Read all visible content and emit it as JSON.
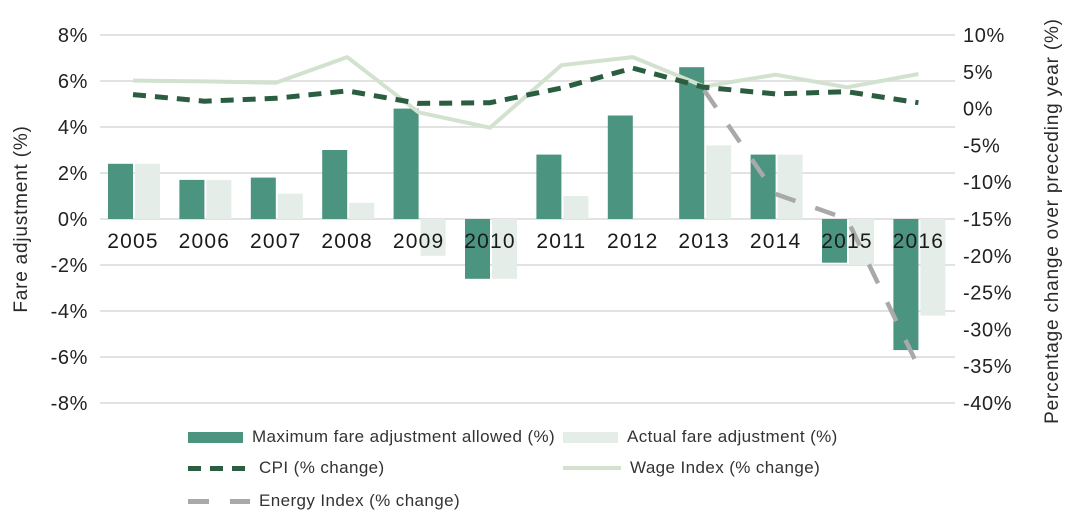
{
  "chart_data": {
    "type": "combo-bar-line",
    "title": "",
    "categories": [
      "2005",
      "2006",
      "2007",
      "2008",
      "2009",
      "2010",
      "2011",
      "2012",
      "2013",
      "2014",
      "2015",
      "2016"
    ],
    "left_axis": {
      "title": "Fare adjustment (%)",
      "ticks": [
        "8%",
        "6%",
        "4%",
        "2%",
        "0%",
        "-2%",
        "-4%",
        "-6%",
        "-8%"
      ],
      "range": [
        -8,
        8
      ],
      "step": 2
    },
    "right_axis": {
      "title": "Percentage change over preceding year (%)",
      "ticks": [
        "10%",
        "5%",
        "0%",
        "-5%",
        "-10%",
        "-15%",
        "-20%",
        "-25%",
        "-30%",
        "-35%",
        "-40%"
      ],
      "range": [
        -40,
        10
      ],
      "step": 5
    },
    "grid": "horizontal-only",
    "legend_position": "bottom",
    "colors": {
      "max_fare_bar": "#4b947f",
      "actual_fare_bar": "#e4ede8",
      "cpi_line": "#2b5e40",
      "wage_line": "#d2e2cf",
      "energy_line": "#a9a9a9",
      "gridline": "#e2e2e2"
    },
    "series": [
      {
        "name": "Maximum fare adjustment allowed (%)",
        "type": "bar",
        "axis": "left",
        "color": "#4b947f",
        "values": [
          2.4,
          1.7,
          1.8,
          3.0,
          4.8,
          -2.6,
          2.8,
          4.5,
          6.6,
          2.8,
          -1.9,
          -5.7
        ]
      },
      {
        "name": "Actual fare adjustment (%)",
        "type": "bar",
        "axis": "left",
        "color": "#e4ede8",
        "values": [
          2.4,
          1.7,
          1.1,
          0.7,
          -1.6,
          -2.6,
          1.0,
          0,
          3.2,
          2.8,
          -2.0,
          -4.2
        ]
      },
      {
        "name": "CPI (% change)",
        "type": "line",
        "axis": "right",
        "color": "#2b5e40",
        "dash": [
          13,
          9
        ],
        "width": 5,
        "values": [
          1.9,
          1.0,
          1.4,
          2.4,
          0.7,
          0.8,
          2.8,
          5.5,
          2.9,
          2.0,
          2.3,
          0.8
        ]
      },
      {
        "name": "Wage Index (% change)",
        "type": "line",
        "axis": "right",
        "color": "#d2e2cf",
        "dash": null,
        "width": 4,
        "values": [
          3.8,
          3.7,
          3.5,
          7.0,
          -0.5,
          -2.6,
          5.9,
          7.0,
          3.0,
          4.6,
          2.9,
          4.7
        ]
      },
      {
        "name": "Energy Index (% change)",
        "type": "line",
        "axis": "right",
        "color": "#a9a9a9",
        "dash": [
          21,
          21
        ],
        "width": 4.5,
        "values": [
          null,
          null,
          null,
          null,
          null,
          null,
          null,
          null,
          2.5,
          -11.6,
          -15.0,
          -35.1
        ]
      }
    ]
  }
}
